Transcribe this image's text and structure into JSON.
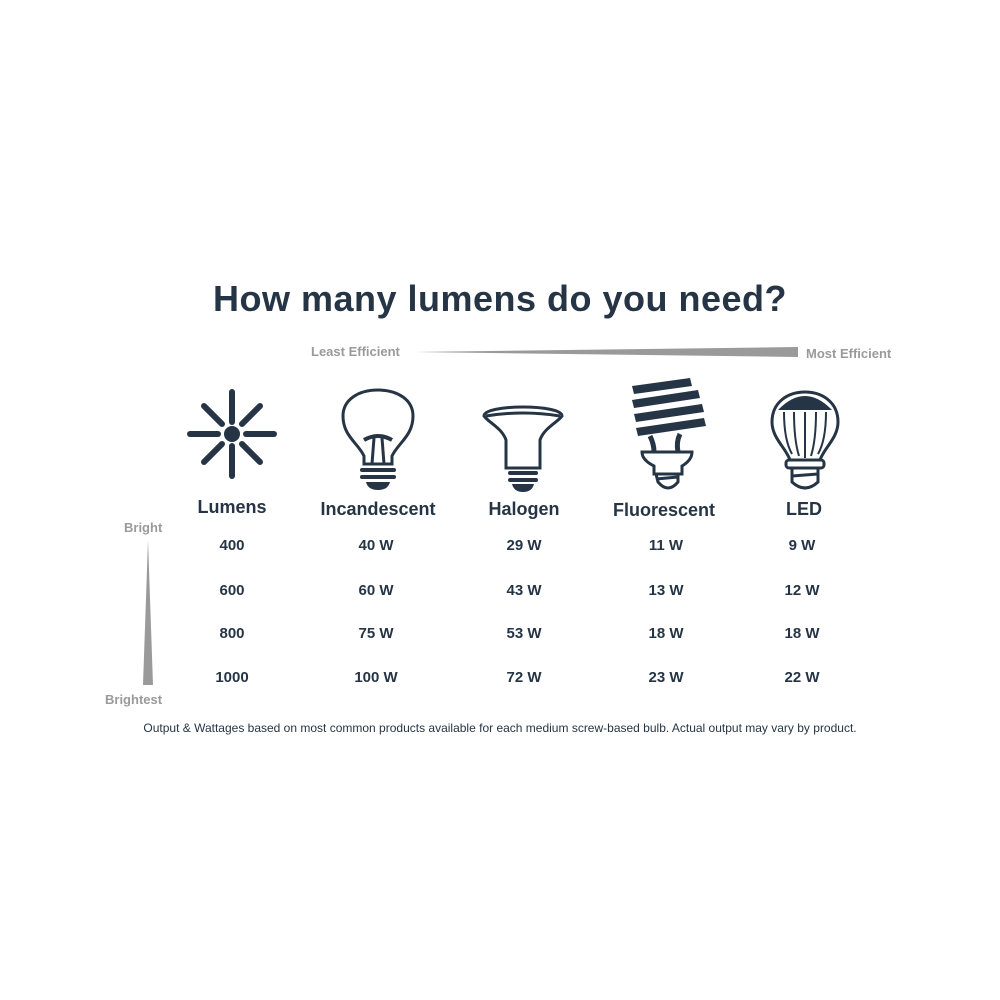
{
  "title": "How many lumens do you need?",
  "efficiency_scale": {
    "left_label": "Least Efficient",
    "right_label": "Most Efficient"
  },
  "brightness_scale": {
    "top_label": "Bright",
    "bottom_label": "Brightest"
  },
  "footnote": "Output & Wattages based on most common products available for each medium screw-based bulb. Actual output may vary by product.",
  "colors": {
    "primary": "#263545",
    "scale_grey": "#9a9a9a"
  },
  "chart_data": {
    "type": "table",
    "title": "How many lumens do you need?",
    "columns": [
      {
        "label": "Lumens",
        "icon": "light-burst-icon"
      },
      {
        "label": "Incandescent",
        "icon": "incandescent-bulb-icon"
      },
      {
        "label": "Halogen",
        "icon": "halogen-bulb-icon"
      },
      {
        "label": "Fluorescent",
        "icon": "cfl-bulb-icon"
      },
      {
        "label": "LED",
        "icon": "led-bulb-icon"
      }
    ],
    "rows": [
      [
        "400",
        "40 W",
        "29 W",
        "11 W",
        "9 W"
      ],
      [
        "600",
        "60 W",
        "43 W",
        "13 W",
        "12 W"
      ],
      [
        "800",
        "75 W",
        "53 W",
        "18 W",
        "18 W"
      ],
      [
        "1000",
        "100 W",
        "72 W",
        "23 W",
        "22 W"
      ]
    ]
  }
}
